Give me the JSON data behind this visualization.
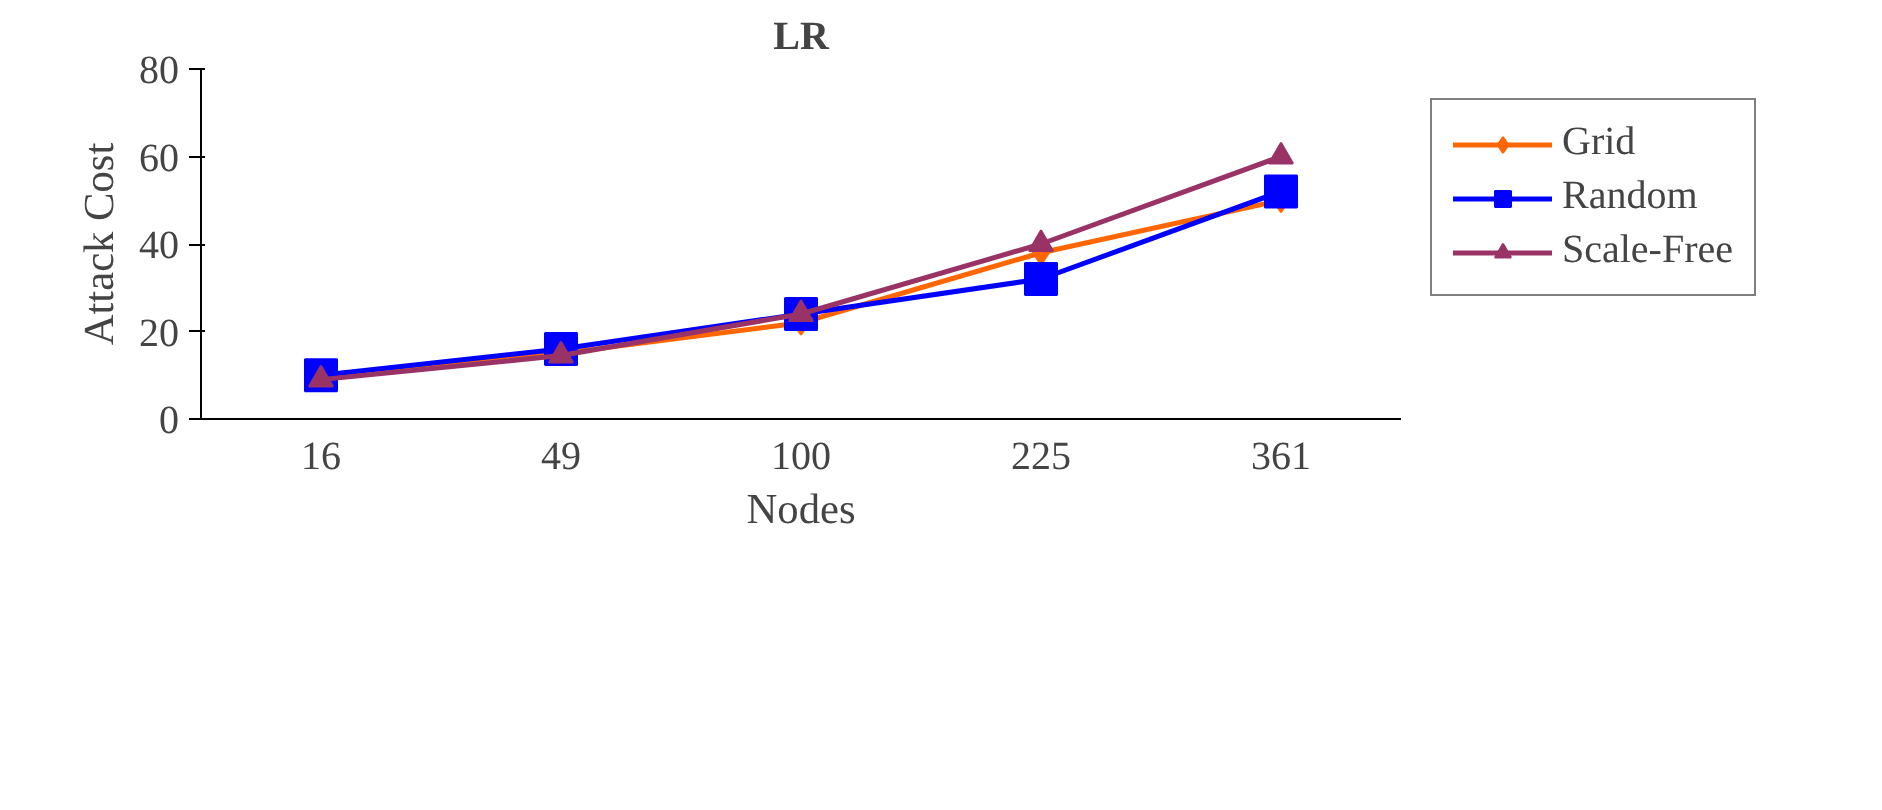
{
  "chart_data": {
    "type": "line",
    "title": "LR",
    "xlabel": "Nodes",
    "ylabel": "Attack Cost",
    "categories": [
      "16",
      "49",
      "100",
      "225",
      "361"
    ],
    "series": [
      {
        "name": "Grid",
        "color": "#ff6600",
        "marker": "diamond",
        "values": [
          10,
          15,
          22,
          38,
          50
        ]
      },
      {
        "name": "Random",
        "color": "#0000ff",
        "marker": "square",
        "values": [
          10,
          16,
          24,
          32,
          52
        ]
      },
      {
        "name": "Scale-Free",
        "color": "#993366",
        "marker": "triangle",
        "values": [
          9,
          14.5,
          24,
          40,
          60
        ]
      }
    ],
    "ylim": [
      0,
      80
    ],
    "yticks": [
      0,
      20,
      40,
      60,
      80
    ],
    "grid": false,
    "legend": "right",
    "line_style": "solid"
  }
}
